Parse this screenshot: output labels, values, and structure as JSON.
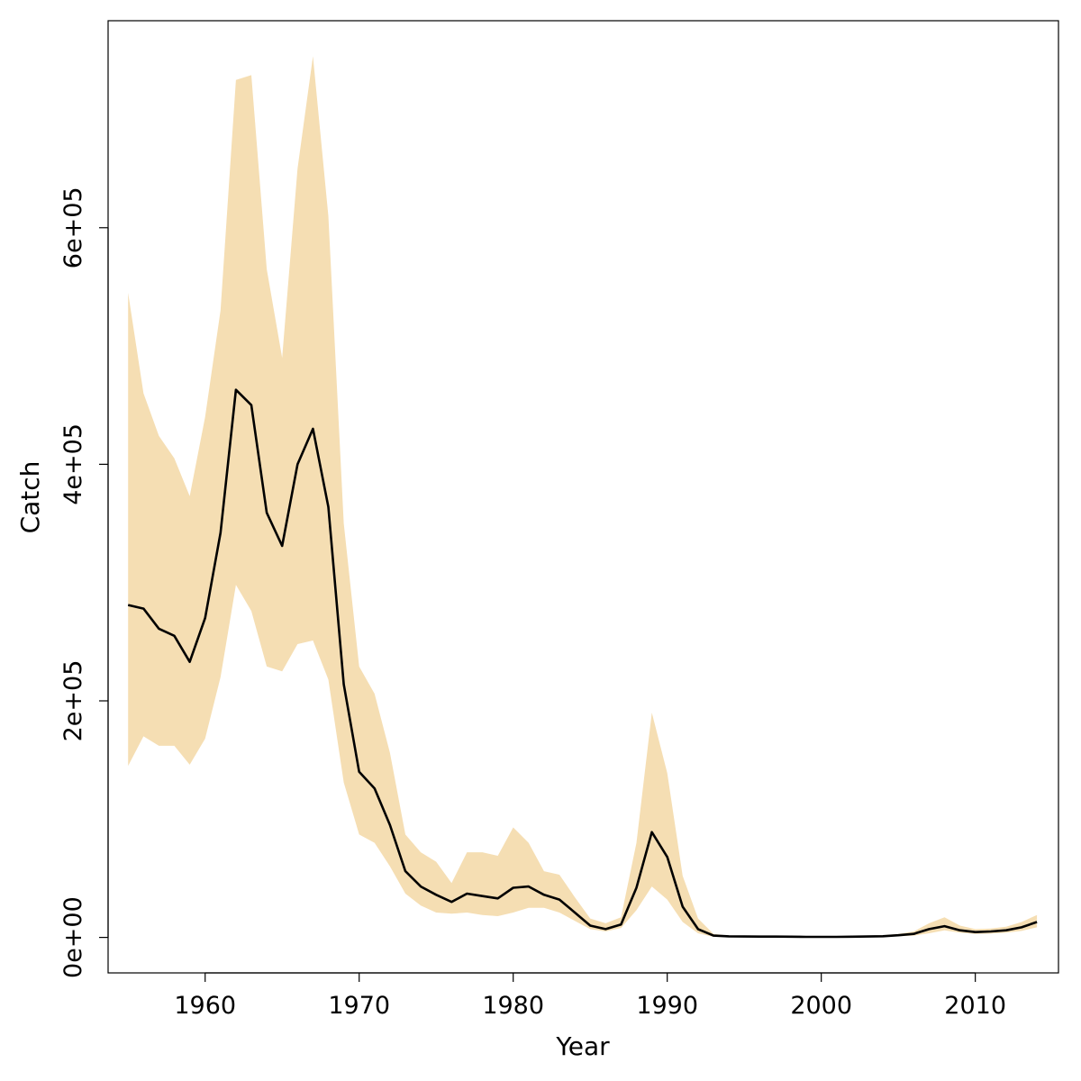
{
  "chart_data": {
    "type": "area",
    "title": "",
    "xlabel": "Year",
    "ylabel": "Catch",
    "xlim": [
      1953.7,
      2015.4
    ],
    "ylim": [
      -30000,
      775000
    ],
    "x_ticks": [
      1960,
      1970,
      1980,
      1990,
      2000,
      2010
    ],
    "x_tick_labels": [
      "1960",
      "1970",
      "1980",
      "1990",
      "2000",
      "2010"
    ],
    "y_ticks": [
      0,
      200000,
      400000,
      600000
    ],
    "y_tick_labels": [
      "0e+00",
      "2e+05",
      "4e+05",
      "6e+05"
    ],
    "grid": false,
    "band_color": "#F5DEB3",
    "line_color": "#000000",
    "x": [
      1955,
      1956,
      1957,
      1958,
      1959,
      1960,
      1961,
      1962,
      1963,
      1964,
      1965,
      1966,
      1967,
      1968,
      1969,
      1970,
      1971,
      1972,
      1973,
      1974,
      1975,
      1976,
      1977,
      1978,
      1979,
      1980,
      1981,
      1982,
      1983,
      1984,
      1985,
      1986,
      1987,
      1988,
      1989,
      1990,
      1991,
      1992,
      1993,
      1994,
      1995,
      1996,
      1997,
      1998,
      1999,
      2000,
      2001,
      2002,
      2003,
      2004,
      2005,
      2006,
      2007,
      2008,
      2009,
      2010,
      2011,
      2012,
      2013,
      2014
    ],
    "series": [
      {
        "name": "",
        "values": [
          281000,
          278000,
          261000,
          255000,
          233000,
          270000,
          342000,
          463000,
          450000,
          359000,
          331000,
          400000,
          430000,
          364000,
          214000,
          140000,
          126000,
          95000,
          56000,
          43000,
          36000,
          30000,
          37000,
          35000,
          33000,
          42000,
          43000,
          36000,
          32000,
          21000,
          10000,
          7000,
          11000,
          42000,
          89000,
          68000,
          26000,
          7000,
          1500,
          900,
          800,
          700,
          700,
          600,
          500,
          500,
          500,
          600,
          800,
          1000,
          1800,
          3000,
          7000,
          9500,
          6000,
          4500,
          5000,
          6000,
          8500,
          13000
        ]
      },
      {
        "name": "",
        "values": [
          145000,
          170000,
          162000,
          162000,
          146000,
          168000,
          220000,
          298000,
          276000,
          229000,
          225000,
          248000,
          251000,
          218000,
          131000,
          87000,
          80000,
          60000,
          37000,
          27000,
          21000,
          20000,
          21000,
          19000,
          18000,
          21000,
          25000,
          25000,
          21000,
          14000,
          7000,
          5000,
          8000,
          23000,
          43000,
          32000,
          13000,
          3500,
          500,
          300,
          300,
          300,
          300,
          300,
          300,
          300,
          300,
          300,
          400,
          500,
          900,
          1500,
          3500,
          6000,
          4000,
          3000,
          3200,
          4000,
          5500,
          8500
        ]
      },
      {
        "name": "",
        "values": [
          545000,
          460000,
          424000,
          405000,
          373000,
          440000,
          530000,
          725000,
          729000,
          565000,
          490000,
          650000,
          745000,
          610000,
          350000,
          229000,
          206000,
          156000,
          87000,
          72000,
          64000,
          46000,
          72000,
          72000,
          69000,
          93000,
          80000,
          56000,
          53000,
          34000,
          16000,
          12000,
          17000,
          80000,
          190000,
          139000,
          52000,
          16000,
          3000,
          1500,
          1300,
          1200,
          1200,
          1100,
          1000,
          1000,
          1000,
          1100,
          1400,
          1800,
          3000,
          5000,
          12000,
          17000,
          10000,
          7000,
          7500,
          9000,
          13000,
          19000
        ]
      }
    ]
  }
}
